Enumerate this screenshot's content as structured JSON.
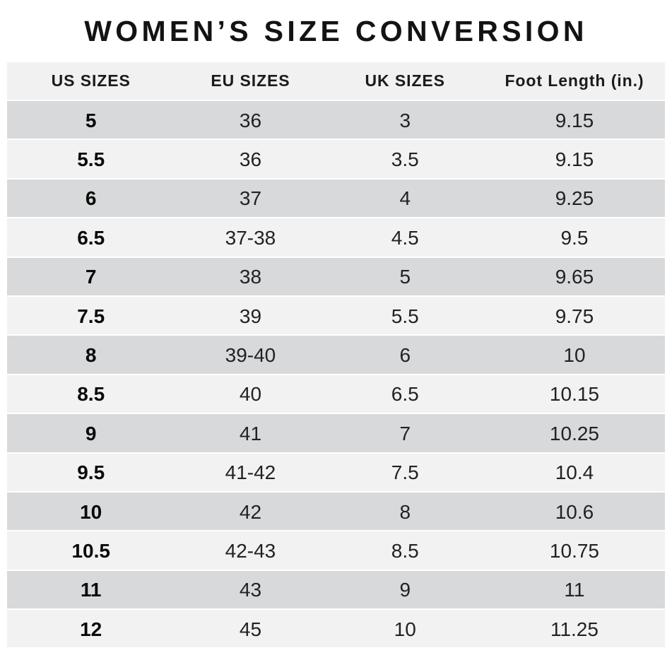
{
  "title": "WOMEN’S SIZE CONVERSION",
  "table": {
    "headers": [
      "US SIZES",
      "EU SIZES",
      "UK SIZES",
      "Foot Length (in.)"
    ],
    "rows": [
      [
        "5",
        "36",
        "3",
        "9.15"
      ],
      [
        "5.5",
        "36",
        "3.5",
        "9.15"
      ],
      [
        "6",
        "37",
        "4",
        "9.25"
      ],
      [
        "6.5",
        "37-38",
        "4.5",
        "9.5"
      ],
      [
        "7",
        "38",
        "5",
        "9.65"
      ],
      [
        "7.5",
        "39",
        "5.5",
        "9.75"
      ],
      [
        "8",
        "39-40",
        "6",
        "10"
      ],
      [
        "8.5",
        "40",
        "6.5",
        "10.15"
      ],
      [
        "9",
        "41",
        "7",
        "10.25"
      ],
      [
        "9.5",
        "41-42",
        "7.5",
        "10.4"
      ],
      [
        "10",
        "42",
        "8",
        "10.6"
      ],
      [
        "10.5",
        "42-43",
        "8.5",
        "10.75"
      ],
      [
        "11",
        "43",
        "9",
        "11"
      ],
      [
        "12",
        "45",
        "10",
        "11.25"
      ]
    ]
  },
  "chart_data": {
    "type": "table",
    "title": "WOMEN’S SIZE CONVERSION",
    "columns": [
      "US SIZES",
      "EU SIZES",
      "UK SIZES",
      "Foot Length (in.)"
    ],
    "rows": [
      [
        "5",
        "36",
        "3",
        "9.15"
      ],
      [
        "5.5",
        "36",
        "3.5",
        "9.15"
      ],
      [
        "6",
        "37",
        "4",
        "9.25"
      ],
      [
        "6.5",
        "37-38",
        "4.5",
        "9.5"
      ],
      [
        "7",
        "38",
        "5",
        "9.65"
      ],
      [
        "7.5",
        "39",
        "5.5",
        "9.75"
      ],
      [
        "8",
        "39-40",
        "6",
        "10"
      ],
      [
        "8.5",
        "40",
        "6.5",
        "10.15"
      ],
      [
        "9",
        "41",
        "7",
        "10.25"
      ],
      [
        "9.5",
        "41-42",
        "7.5",
        "10.4"
      ],
      [
        "10",
        "42",
        "8",
        "10.6"
      ],
      [
        "10.5",
        "42-43",
        "8.5",
        "10.75"
      ],
      [
        "11",
        "43",
        "9",
        "11"
      ],
      [
        "12",
        "45",
        "10",
        "11.25"
      ]
    ],
    "layout": {
      "striped": true,
      "stripe_color_dark": "#d8d9da",
      "stripe_color_light": "#f2f2f2",
      "header_background": "#f1f1f1",
      "text_color": "#222222"
    }
  },
  "colors": {
    "row_dark": "#d8d9da",
    "row_light": "#f2f2f2",
    "header_bg": "#f1f1f1",
    "text": "#222222",
    "title_text": "#131313",
    "background": "#ffffff"
  }
}
